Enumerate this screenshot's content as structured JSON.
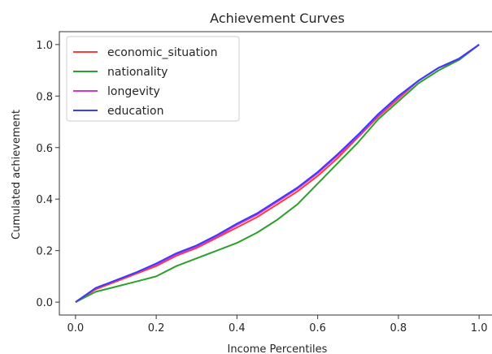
{
  "chart_data": {
    "type": "line",
    "title": "Achievement Curves",
    "xlabel": "Income Percentiles",
    "ylabel": "Cumulated achievement",
    "xlim": [
      -0.04,
      1.04
    ],
    "ylim": [
      -0.05,
      1.05
    ],
    "xticks": [
      0.0,
      0.2,
      0.4,
      0.6,
      0.8,
      1.0
    ],
    "xtick_labels": [
      "0.0",
      "0.2",
      "0.4",
      "0.6",
      "0.8",
      "1.0"
    ],
    "yticks": [
      0.0,
      0.2,
      0.4,
      0.6,
      0.8,
      1.0
    ],
    "ytick_labels": [
      "0.0",
      "0.2",
      "0.4",
      "0.6",
      "0.8",
      "1.0"
    ],
    "grid": false,
    "legend_position": "top-left",
    "series": [
      {
        "name": "economic_situation",
        "color": "#ff3b3b",
        "x": [
          0.0,
          0.05,
          0.1,
          0.15,
          0.2,
          0.25,
          0.3,
          0.35,
          0.4,
          0.45,
          0.5,
          0.55,
          0.6,
          0.65,
          0.7,
          0.75,
          0.8,
          0.85,
          0.9,
          0.95,
          1.0
        ],
        "y": [
          0.0,
          0.05,
          0.08,
          0.11,
          0.14,
          0.18,
          0.21,
          0.25,
          0.29,
          0.33,
          0.38,
          0.43,
          0.49,
          0.56,
          0.64,
          0.72,
          0.79,
          0.86,
          0.91,
          0.94,
          1.0
        ]
      },
      {
        "name": "nationality",
        "color": "#2ca02c",
        "x": [
          0.0,
          0.05,
          0.1,
          0.15,
          0.2,
          0.25,
          0.3,
          0.35,
          0.4,
          0.45,
          0.5,
          0.55,
          0.6,
          0.65,
          0.7,
          0.75,
          0.8,
          0.85,
          0.9,
          0.95,
          1.0
        ],
        "y": [
          0.0,
          0.04,
          0.06,
          0.08,
          0.1,
          0.14,
          0.17,
          0.2,
          0.23,
          0.27,
          0.32,
          0.38,
          0.46,
          0.54,
          0.62,
          0.71,
          0.78,
          0.85,
          0.9,
          0.94,
          1.0
        ]
      },
      {
        "name": "longevity",
        "color": "#d633d6",
        "x": [
          0.0,
          0.05,
          0.1,
          0.15,
          0.2,
          0.25,
          0.3,
          0.35,
          0.4,
          0.45,
          0.5,
          0.55,
          0.6,
          0.65,
          0.7,
          0.75,
          0.8,
          0.85,
          0.9,
          0.95,
          1.0
        ],
        "y": [
          0.0,
          0.055,
          0.085,
          0.115,
          0.145,
          0.185,
          0.215,
          0.255,
          0.3,
          0.34,
          0.39,
          0.44,
          0.5,
          0.57,
          0.645,
          0.725,
          0.795,
          0.86,
          0.91,
          0.945,
          1.0
        ]
      },
      {
        "name": "education",
        "color": "#3b3bff",
        "x": [
          0.0,
          0.05,
          0.1,
          0.15,
          0.2,
          0.25,
          0.3,
          0.35,
          0.4,
          0.45,
          0.5,
          0.55,
          0.6,
          0.65,
          0.7,
          0.75,
          0.8,
          0.85,
          0.9,
          0.95,
          1.0
        ],
        "y": [
          0.0,
          0.055,
          0.085,
          0.115,
          0.15,
          0.19,
          0.22,
          0.26,
          0.305,
          0.345,
          0.395,
          0.445,
          0.505,
          0.575,
          0.65,
          0.73,
          0.8,
          0.86,
          0.91,
          0.945,
          1.0
        ]
      }
    ]
  }
}
